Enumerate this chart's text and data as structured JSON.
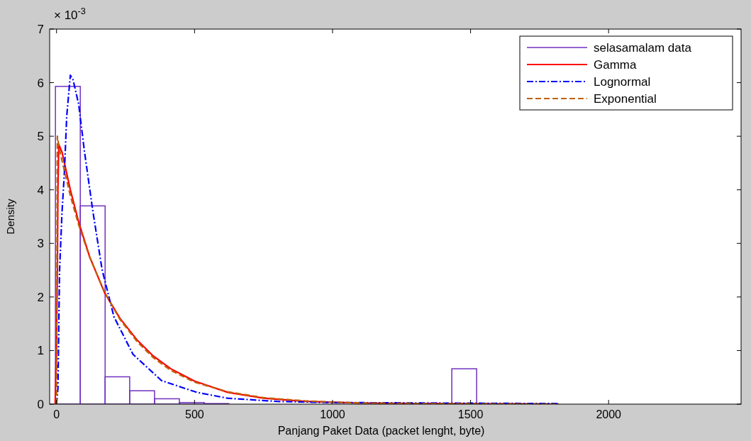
{
  "chart_data": {
    "type": "histogram",
    "xlabel": "Panjang Paket Data (packet lenght, byte)",
    "ylabel": "Density",
    "annotations": [
      "× 10$^{-3}$"
    ],
    "xlim": [
      -25,
      2480
    ],
    "ylim": [
      0,
      7
    ],
    "xticks": [
      0,
      500,
      1000,
      1500,
      2000
    ],
    "yticks": [
      0,
      1,
      2,
      3,
      4,
      5,
      6,
      7
    ],
    "grid": false,
    "legend": "top right",
    "series": [
      {
        "name": "selasamalam data",
        "color": "#7030c0",
        "bins": [
          -4,
          86,
          176,
          265,
          355,
          445,
          535,
          624,
          714,
          804,
          894,
          983,
          1073,
          1163,
          1253,
          1343,
          1432,
          1522
        ],
        "values": [
          5.93,
          3.7,
          0.51,
          0.25,
          0.1,
          0.03,
          0.01,
          0,
          0,
          0,
          0,
          0,
          0,
          0,
          0,
          0,
          0.66
        ]
      },
      {
        "name": "Gamma",
        "type": "line",
        "color": "#ff0000",
        "line_style": "solid",
        "x": [
          -5,
          0,
          3,
          5,
          8,
          20,
          50,
          80,
          120,
          174,
          230,
          293,
          350,
          414,
          500,
          620,
          750,
          900,
          1100,
          1400,
          1820
        ],
        "values": [
          0,
          1.2,
          2.5,
          4.0,
          4.85,
          4.7,
          4.0,
          3.4,
          2.75,
          2.08,
          1.6,
          1.19,
          0.9,
          0.66,
          0.43,
          0.22,
          0.11,
          0.05,
          0.02,
          0.01,
          0
        ]
      },
      {
        "name": "Lognormal",
        "type": "line",
        "color": "#0000ff",
        "line_style": "dashdot",
        "x": [
          0,
          5,
          11,
          20,
          28,
          37,
          50,
          60,
          80,
          101,
          131,
          165,
          208,
          277,
          380,
          508,
          620,
          800,
          1000,
          1400,
          1820
        ],
        "values": [
          0,
          0.3,
          2.5,
          3.6,
          4.28,
          5.38,
          6.14,
          6.05,
          5.6,
          4.72,
          3.62,
          2.51,
          1.63,
          0.93,
          0.44,
          0.22,
          0.11,
          0.05,
          0.03,
          0.02,
          0.01
        ]
      },
      {
        "name": "Exponential",
        "type": "line",
        "color": "#c06000",
        "line_style": "dashed",
        "x": [
          0,
          3,
          10,
          50,
          80,
          120,
          174,
          230,
          293,
          350,
          414,
          500,
          620,
          750,
          900,
          1100,
          1400,
          1820
        ],
        "values": [
          0,
          5.0,
          4.76,
          3.89,
          3.35,
          2.74,
          2.09,
          1.58,
          1.16,
          0.87,
          0.63,
          0.41,
          0.23,
          0.12,
          0.06,
          0.02,
          0.01,
          0
        ]
      }
    ]
  }
}
